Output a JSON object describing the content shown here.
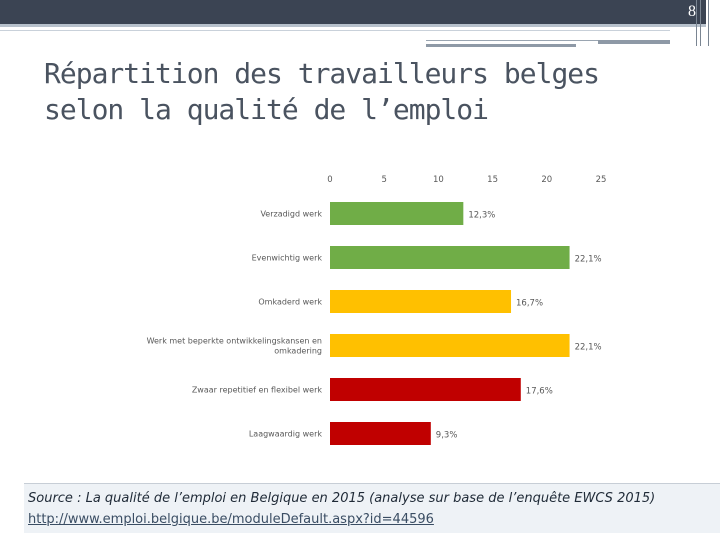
{
  "slide": {
    "number": "8"
  },
  "title": {
    "line1": "Répartition des travailleurs belges",
    "line2": "selon la qualité de l’emploi"
  },
  "source": {
    "text": "Source : La qualité de l’emploi en Belgique en 2015 (analyse sur base de l’enquête EWCS 2015)",
    "link": "http://www.emploi.belgique.be/moduleDefault.aspx?id=44596"
  },
  "chart_data": {
    "type": "bar",
    "orientation": "horizontal",
    "categories": [
      "Verzadigd werk",
      "Evenwichtig werk",
      "Omkaderd werk",
      "Werk met beperkte ontwikkelingskansen en omkadering",
      "Zwaar repetitief en flexibel werk",
      "Laagwaardig werk"
    ],
    "category_lines": [
      [
        "Verzadigd werk"
      ],
      [
        "Evenwichtig werk"
      ],
      [
        "Omkaderd werk"
      ],
      [
        "Werk met beperkte ontwikkelingskansen en",
        "omkadering"
      ],
      [
        "Zwaar repetitief en flexibel werk"
      ],
      [
        "Laagwaardig werk"
      ]
    ],
    "values": [
      12.3,
      22.1,
      16.7,
      22.1,
      17.6,
      9.3
    ],
    "value_labels": [
      "12,3%",
      "22,1%",
      "16,7%",
      "22,1%",
      "17,6%",
      "9,3%"
    ],
    "colors": [
      "#70ad47",
      "#70ad47",
      "#ffc000",
      "#ffc000",
      "#c00000",
      "#c00000"
    ],
    "xlim": [
      0,
      25
    ],
    "ticks": [
      "0",
      "5",
      "10",
      "15",
      "20",
      "25"
    ],
    "grid": false,
    "title": "",
    "xlabel": "",
    "ylabel": ""
  }
}
